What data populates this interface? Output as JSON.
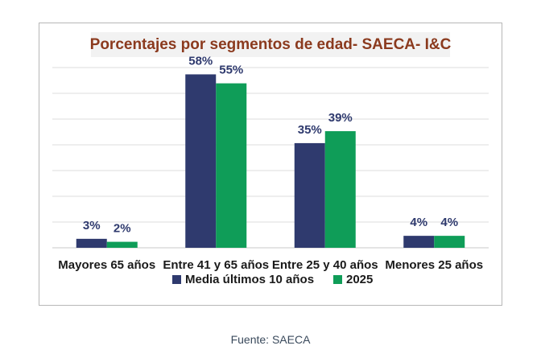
{
  "chart_data": {
    "type": "bar",
    "title": "Porcentajes por segmentos de edad- SAECA- I&C",
    "categories": [
      "Mayores 65 años",
      "Entre 41 y 65 años",
      "Entre 25 y 40 años",
      "Menores 25 años"
    ],
    "series": [
      {
        "name": "Media últimos 10 años",
        "values": [
          3,
          58,
          35,
          4
        ],
        "labels": [
          "3%",
          "58%",
          "35%",
          "4%"
        ],
        "color": "#2f3a6e"
      },
      {
        "name": "2025",
        "values": [
          2,
          55,
          39,
          4
        ],
        "labels": [
          "2%",
          "55%",
          "39%",
          "4%"
        ],
        "color": "#0f9d58"
      }
    ],
    "ylim": [
      0,
      60
    ],
    "grid": true,
    "legend": "bottom",
    "value_label_color": "#2f3a6e"
  },
  "source": "Fuente: SAECA"
}
